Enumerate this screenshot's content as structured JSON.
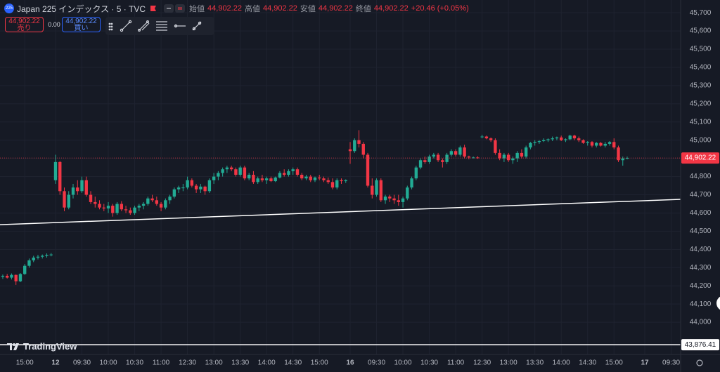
{
  "header": {
    "badge": "225",
    "title": "Japan 225 インデックス · 5 · TVC",
    "open_label": "始値",
    "open": "44,902.22",
    "high_label": "高値",
    "high": "44,902.22",
    "low_label": "安値",
    "low": "44,902.22",
    "close_label": "終値",
    "close": "44,902.22",
    "change": "+20.46 (+0.05%)",
    "sell_price": "44,902.22",
    "sell_label": "売り",
    "spread": "0.00",
    "buy_price": "44,902.22",
    "buy_label": "買い",
    "logo": "TradingView"
  },
  "chart_data": {
    "type": "candlestick",
    "up_color": "#22ab94",
    "down_color": "#f23645",
    "grid": true,
    "x": [
      0,
      1,
      2,
      3,
      4,
      5,
      6,
      7,
      8,
      9,
      10,
      11,
      12,
      13,
      14,
      15,
      16,
      17,
      18,
      19,
      20,
      21,
      22,
      23,
      24,
      25,
      26,
      27,
      28,
      29,
      30,
      31,
      32,
      33,
      34,
      35,
      36,
      37,
      38,
      39,
      40,
      41,
      42,
      43,
      44,
      45,
      46,
      47,
      48,
      49,
      50,
      51,
      52,
      53,
      54,
      55,
      56,
      57,
      58,
      59,
      60,
      61,
      62,
      63,
      64,
      65,
      66,
      67,
      68,
      69,
      70,
      71,
      72,
      73,
      74,
      75,
      76,
      77,
      78,
      79,
      80,
      81,
      82,
      83,
      84,
      85,
      86,
      87,
      88,
      89,
      90,
      91,
      92,
      93,
      94,
      95,
      96,
      97,
      98,
      99,
      100,
      101,
      102,
      103,
      104,
      105,
      106,
      107,
      108,
      109,
      110,
      111,
      112,
      113,
      114,
      115,
      116,
      117,
      118,
      119,
      120,
      121,
      122,
      123,
      124,
      125,
      126,
      127,
      128,
      129,
      130,
      131,
      132,
      133,
      134,
      135,
      136,
      137,
      138,
      139,
      140,
      141,
      142
    ],
    "candles": [
      [
        44250,
        44262,
        44238,
        44255
      ],
      [
        44255,
        44265,
        44240,
        44245
      ],
      [
        44245,
        44268,
        44235,
        44260
      ],
      [
        44260,
        44262,
        44205,
        44225
      ],
      [
        44225,
        44270,
        44220,
        44265
      ],
      [
        44265,
        44320,
        44260,
        44310
      ],
      [
        44310,
        44350,
        44300,
        44340
      ],
      [
        44340,
        44365,
        44330,
        44355
      ],
      [
        44355,
        44370,
        44345,
        44360
      ],
      [
        44360,
        44372,
        44350,
        44365
      ],
      [
        44365,
        44378,
        44355,
        44370
      ],
      [
        44370,
        44380,
        44362,
        44372
      ],
      [
        44780,
        44920,
        44760,
        44880
      ],
      [
        44880,
        44885,
        44700,
        44720
      ],
      [
        44720,
        44740,
        44610,
        44630
      ],
      [
        44630,
        44720,
        44620,
        44700
      ],
      [
        44700,
        44760,
        44680,
        44740
      ],
      [
        44740,
        44780,
        44700,
        44720
      ],
      [
        44720,
        44800,
        44710,
        44780
      ],
      [
        44780,
        44800,
        44690,
        44700
      ],
      [
        44700,
        44720,
        44650,
        44660
      ],
      [
        44660,
        44690,
        44630,
        44650
      ],
      [
        44650,
        44670,
        44620,
        44630
      ],
      [
        44630,
        44650,
        44610,
        44625
      ],
      [
        44625,
        44660,
        44600,
        44640
      ],
      [
        44640,
        44650,
        44580,
        44600
      ],
      [
        44600,
        44660,
        44590,
        44650
      ],
      [
        44650,
        44665,
        44610,
        44620
      ],
      [
        44620,
        44640,
        44600,
        44615
      ],
      [
        44615,
        44630,
        44590,
        44600
      ],
      [
        44600,
        44640,
        44590,
        44630
      ],
      [
        44630,
        44650,
        44610,
        44640
      ],
      [
        44640,
        44660,
        44620,
        44650
      ],
      [
        44650,
        44690,
        44640,
        44680
      ],
      [
        44680,
        44700,
        44660,
        44670
      ],
      [
        44670,
        44690,
        44640,
        44650
      ],
      [
        44650,
        44660,
        44610,
        44630
      ],
      [
        44630,
        44680,
        44620,
        44670
      ],
      [
        44670,
        44700,
        44650,
        44690
      ],
      [
        44690,
        44740,
        44680,
        44730
      ],
      [
        44730,
        44750,
        44710,
        44740
      ],
      [
        44740,
        44760,
        44720,
        44740
      ],
      [
        44740,
        44800,
        44730,
        44780
      ],
      [
        44780,
        44790,
        44740,
        44750
      ],
      [
        44750,
        44760,
        44710,
        44730
      ],
      [
        44730,
        44760,
        44710,
        44745
      ],
      [
        44745,
        44750,
        44700,
        44720
      ],
      [
        44720,
        44790,
        44710,
        44780
      ],
      [
        44780,
        44820,
        44760,
        44800
      ],
      [
        44800,
        44830,
        44780,
        44820
      ],
      [
        44820,
        44850,
        44800,
        44840
      ],
      [
        44840,
        44860,
        44820,
        44850
      ],
      [
        44850,
        44860,
        44830,
        44840
      ],
      [
        44840,
        44850,
        44800,
        44810
      ],
      [
        44810,
        44860,
        44800,
        44850
      ],
      [
        44850,
        44860,
        44780,
        44790
      ],
      [
        44790,
        44820,
        44780,
        44810
      ],
      [
        44810,
        44830,
        44760,
        44770
      ],
      [
        44770,
        44800,
        44760,
        44790
      ],
      [
        44790,
        44810,
        44770,
        44780
      ],
      [
        44780,
        44800,
        44760,
        44790
      ],
      [
        44790,
        44800,
        44770,
        44775
      ],
      [
        44775,
        44800,
        44770,
        44795
      ],
      [
        44795,
        44830,
        44790,
        44820
      ],
      [
        44820,
        44840,
        44800,
        44810
      ],
      [
        44810,
        44840,
        44800,
        44830
      ],
      [
        44830,
        44850,
        44810,
        44840
      ],
      [
        44840,
        44850,
        44800,
        44810
      ],
      [
        44810,
        44820,
        44780,
        44790
      ],
      [
        44790,
        44810,
        44780,
        44800
      ],
      [
        44800,
        44810,
        44770,
        44780
      ],
      [
        44780,
        44800,
        44770,
        44795
      ],
      [
        44795,
        44810,
        44780,
        44790
      ],
      [
        44790,
        44800,
        44770,
        44780
      ],
      [
        44780,
        44795,
        44760,
        44770
      ],
      [
        44770,
        44790,
        44730,
        44740
      ],
      [
        44740,
        44790,
        44730,
        44780
      ],
      [
        44780,
        44790,
        44760,
        44775
      ],
      [
        44775,
        44785,
        44765,
        44780
      ],
      [
        44950,
        44990,
        44870,
        44940
      ],
      [
        44940,
        45010,
        44930,
        45000
      ],
      [
        45000,
        45055,
        44960,
        44980
      ],
      [
        44980,
        44990,
        44900,
        44920
      ],
      [
        44920,
        44930,
        44740,
        44750
      ],
      [
        44750,
        44790,
        44680,
        44700
      ],
      [
        44700,
        44790,
        44690,
        44780
      ],
      [
        44780,
        44790,
        44660,
        44670
      ],
      [
        44670,
        44700,
        44650,
        44690
      ],
      [
        44690,
        44700,
        44660,
        44680
      ],
      [
        44680,
        44700,
        44650,
        44670
      ],
      [
        44670,
        44700,
        44640,
        44660
      ],
      [
        44660,
        44690,
        44630,
        44680
      ],
      [
        44680,
        44750,
        44670,
        44740
      ],
      [
        44740,
        44800,
        44730,
        44790
      ],
      [
        44790,
        44860,
        44780,
        44850
      ],
      [
        44850,
        44900,
        44840,
        44890
      ],
      [
        44890,
        44910,
        44870,
        44880
      ],
      [
        44880,
        44920,
        44870,
        44910
      ],
      [
        44910,
        44930,
        44900,
        44920
      ],
      [
        44920,
        44930,
        44880,
        44890
      ],
      [
        44890,
        44900,
        44850,
        44880
      ],
      [
        44880,
        44930,
        44870,
        44920
      ],
      [
        44920,
        44950,
        44910,
        44940
      ],
      [
        44940,
        44950,
        44910,
        44920
      ],
      [
        44920,
        44970,
        44910,
        44960
      ],
      [
        44960,
        44975,
        44900,
        44910
      ],
      [
        44910,
        44915,
        44895,
        44905
      ],
      [
        44905,
        44910,
        44900,
        44905
      ],
      [
        44905,
        44912,
        44898,
        44902
      ],
      [
        45020,
        45030,
        45010,
        45020
      ],
      [
        45020,
        45025,
        45005,
        45010
      ],
      [
        45010,
        45015,
        44990,
        45000
      ],
      [
        45000,
        45010,
        44920,
        44930
      ],
      [
        44930,
        44950,
        44890,
        44900
      ],
      [
        44900,
        44930,
        44880,
        44920
      ],
      [
        44920,
        44930,
        44880,
        44890
      ],
      [
        44890,
        44910,
        44870,
        44900
      ],
      [
        44900,
        44940,
        44880,
        44930
      ],
      [
        44930,
        44950,
        44900,
        44910
      ],
      [
        44910,
        44970,
        44900,
        44960
      ],
      [
        44960,
        44990,
        44950,
        44985
      ],
      [
        44985,
        45000,
        44970,
        44990
      ],
      [
        44990,
        45000,
        44980,
        44995
      ],
      [
        44995,
        45010,
        44990,
        45000
      ],
      [
        45000,
        45010,
        44990,
        45005
      ],
      [
        45005,
        45020,
        44995,
        45010
      ],
      [
        45010,
        45020,
        45000,
        45015
      ],
      [
        45015,
        45025,
        44995,
        45000
      ],
      [
        45000,
        45010,
        44990,
        45005
      ],
      [
        45005,
        45030,
        45000,
        45025
      ],
      [
        45025,
        45030,
        45000,
        45010
      ],
      [
        45010,
        45020,
        44990,
        45000
      ],
      [
        45000,
        45005,
        44980,
        44985
      ],
      [
        44985,
        44995,
        44970,
        44990
      ],
      [
        44990,
        44995,
        44960,
        44970
      ],
      [
        44970,
        44990,
        44960,
        44985
      ],
      [
        44985,
        44990,
        44965,
        44970
      ],
      [
        44970,
        44990,
        44960,
        44980
      ],
      [
        44980,
        44995,
        44970,
        44990
      ],
      [
        44990,
        45010,
        44950,
        44960
      ],
      [
        44960,
        44970,
        44880,
        44890
      ],
      [
        44890,
        44910,
        44860,
        44900
      ],
      [
        44900,
        44910,
        44895,
        44902.22
      ]
    ],
    "xlim": [
      -0.63,
      154.15
    ],
    "xticks": [
      {
        "value": 5,
        "label": "15:00"
      },
      {
        "value": 12,
        "label": "12"
      },
      {
        "value": 18,
        "label": "09:30"
      },
      {
        "value": 24,
        "label": "10:00"
      },
      {
        "value": 30,
        "label": "10:30"
      },
      {
        "value": 36,
        "label": "11:00"
      },
      {
        "value": 42,
        "label": "12:30"
      },
      {
        "value": 48,
        "label": "13:00"
      },
      {
        "value": 54,
        "label": "13:30"
      },
      {
        "value": 60,
        "label": "14:00"
      },
      {
        "value": 66,
        "label": "14:30"
      },
      {
        "value": 72,
        "label": "15:00"
      },
      {
        "value": 79,
        "label": "16"
      },
      {
        "value": 85,
        "label": "09:30"
      },
      {
        "value": 91,
        "label": "10:00"
      },
      {
        "value": 97,
        "label": "10:30"
      },
      {
        "value": 103,
        "label": "11:00"
      },
      {
        "value": 109,
        "label": "12:30"
      },
      {
        "value": 115,
        "label": "13:00"
      },
      {
        "value": 121,
        "label": "13:30"
      },
      {
        "value": 127,
        "label": "14:00"
      },
      {
        "value": 133,
        "label": "14:30"
      },
      {
        "value": 139,
        "label": "15:00"
      },
      {
        "value": 146,
        "label": "17"
      },
      {
        "value": 152,
        "label": "09:30"
      }
    ],
    "ylim": [
      43823,
      45770
    ],
    "yticks": [
      {
        "value": 44000,
        "label": "44,000"
      },
      {
        "value": 44100,
        "label": "44,100"
      },
      {
        "value": 44200,
        "label": "44,200"
      },
      {
        "value": 44300,
        "label": "44,300"
      },
      {
        "value": 44400,
        "label": "44,400"
      },
      {
        "value": 44500,
        "label": "44,500"
      },
      {
        "value": 44600,
        "label": "44,600"
      },
      {
        "value": 44700,
        "label": "44,700"
      },
      {
        "value": 44800,
        "label": "44,800"
      },
      {
        "value": 44900,
        "label": "44,900"
      },
      {
        "value": 45000,
        "label": "45,000"
      },
      {
        "value": 45100,
        "label": "45,100"
      },
      {
        "value": 45200,
        "label": "45,200"
      },
      {
        "value": 45300,
        "label": "45,300"
      },
      {
        "value": 45400,
        "label": "45,400"
      },
      {
        "value": 45500,
        "label": "45,500"
      },
      {
        "value": 45600,
        "label": "45,600"
      },
      {
        "value": 45700,
        "label": "45,700"
      }
    ],
    "price_line": {
      "value": 44902.22,
      "label": "44,902.22",
      "color": "#f23645"
    },
    "horizontal_line": {
      "value": 43876.41,
      "label": "43,876.41",
      "color": "#ffffff"
    },
    "trendline": {
      "x": [
        -0.63,
        154.15
      ],
      "y": [
        44536,
        44675
      ],
      "color": "#ffffff"
    }
  }
}
